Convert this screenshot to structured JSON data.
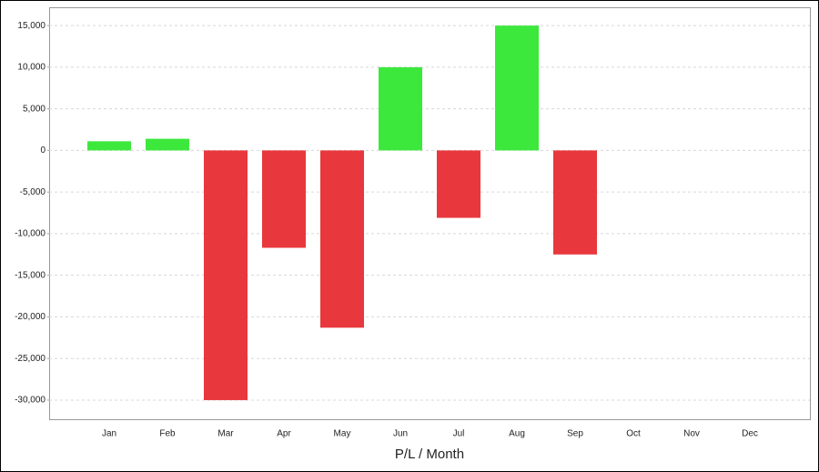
{
  "chart_data": {
    "type": "bar",
    "x_label": "P/L / Month",
    "categories": [
      "Jan",
      "Feb",
      "Mar",
      "Apr",
      "May",
      "Jun",
      "Jul",
      "Aug",
      "Sep",
      "Oct",
      "Nov",
      "Dec"
    ],
    "values": [
      1100,
      1400,
      -30000,
      -11700,
      -21300,
      10000,
      -8100,
      15000,
      -12500,
      null,
      null,
      null
    ],
    "positive_color": "#3de83d",
    "negative_color": "#e8383d",
    "ylim": [
      -32300,
      17200
    ],
    "yticks": [
      {
        "value": -30000,
        "label": "-30,000"
      },
      {
        "value": -25000,
        "label": "-25,000"
      },
      {
        "value": -20000,
        "label": "-20,000"
      },
      {
        "value": -15000,
        "label": "-15,000"
      },
      {
        "value": -10000,
        "label": "-10,000"
      },
      {
        "value": -5000,
        "label": "-5,000"
      },
      0,
      {
        "value": 5000,
        "label": "5,000"
      },
      {
        "value": 10000,
        "label": "10,000"
      },
      {
        "value": 15000,
        "label": "15,000"
      }
    ],
    "grid": true
  }
}
